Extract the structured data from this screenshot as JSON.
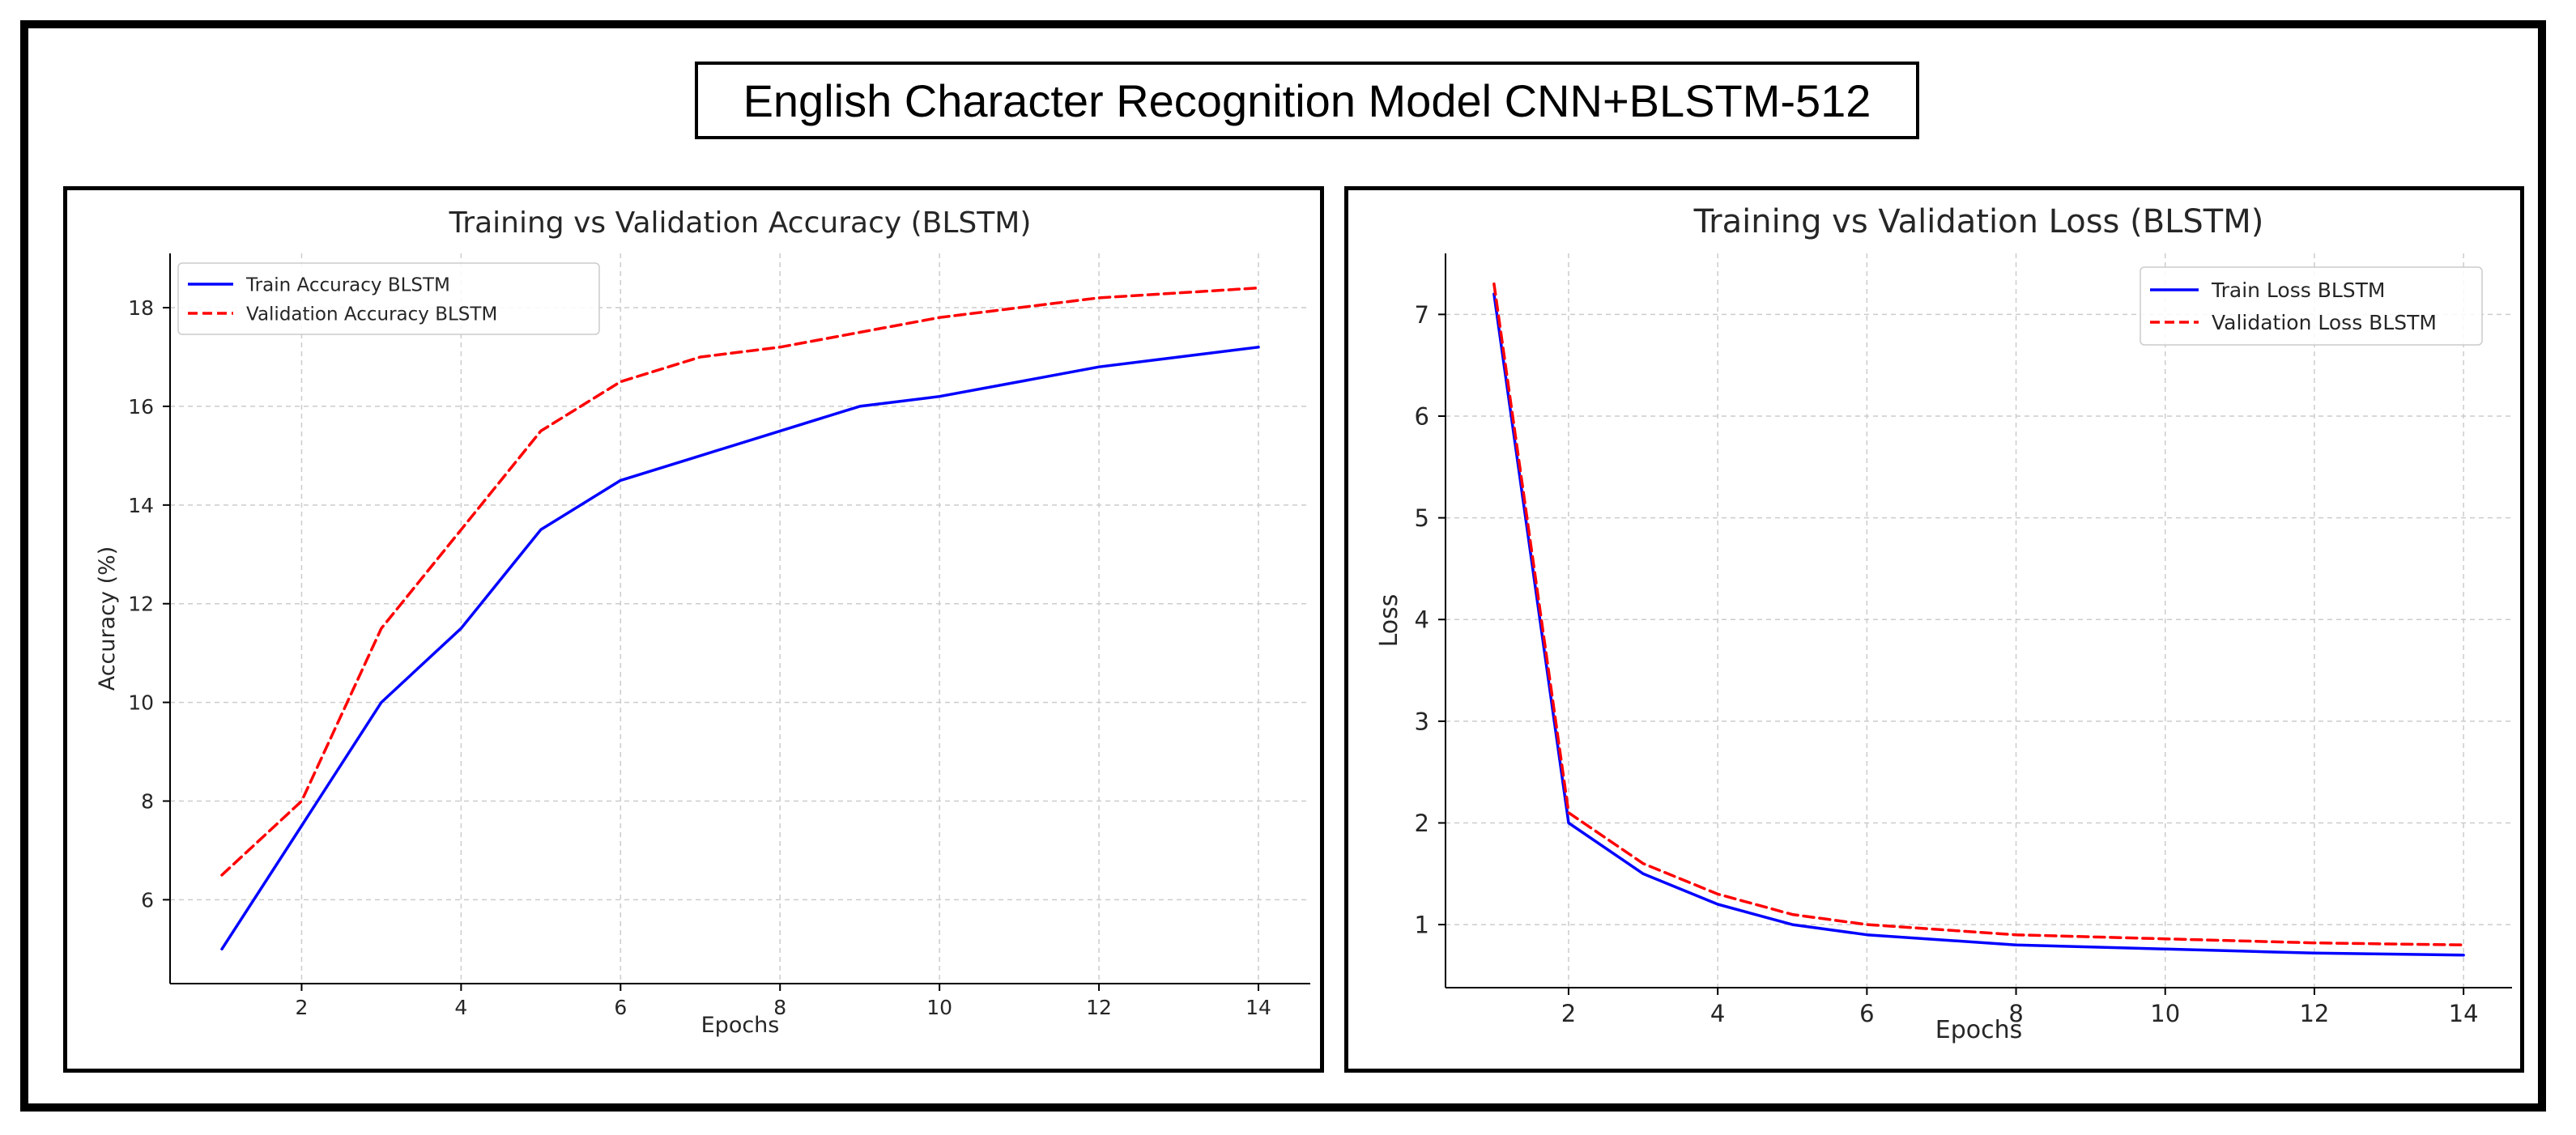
{
  "figure_title": "English Character Recognition Model CNN+BLSTM-512",
  "colors": {
    "train": "#0000ff",
    "validation": "#ff0000",
    "grid": "#cccccc"
  },
  "chart_data": [
    {
      "type": "line",
      "title": "Training vs Validation Accuracy (BLSTM)",
      "xlabel": "Epochs",
      "ylabel": "Accuracy (%)",
      "xlim": [
        0.35,
        14.65
      ],
      "ylim": [
        4.3,
        19.1
      ],
      "xticks": [
        2,
        4,
        6,
        8,
        10,
        12,
        14
      ],
      "yticks": [
        6,
        8,
        10,
        12,
        14,
        16,
        18
      ],
      "grid": true,
      "legend_position": "top-left",
      "x": [
        1,
        2,
        3,
        4,
        5,
        6,
        7,
        8,
        9,
        10,
        11,
        12,
        13,
        14
      ],
      "series": [
        {
          "name": "Train Accuracy BLSTM",
          "style": "solid",
          "color": "#0000ff",
          "values": [
            5.0,
            7.5,
            10.0,
            11.5,
            13.5,
            14.5,
            15.0,
            15.5,
            16.0,
            16.2,
            16.5,
            16.8,
            17.0,
            17.2
          ]
        },
        {
          "name": "Validation Accuracy BLSTM",
          "style": "dashed",
          "color": "#ff0000",
          "values": [
            6.5,
            8.0,
            11.5,
            13.5,
            15.5,
            16.5,
            17.0,
            17.2,
            17.5,
            17.8,
            18.0,
            18.2,
            18.3,
            18.4
          ]
        }
      ]
    },
    {
      "type": "line",
      "title": "Training vs Validation Loss (BLSTM)",
      "xlabel": "Epochs",
      "ylabel": "Loss",
      "xlim": [
        0.35,
        14.65
      ],
      "ylim": [
        0.38,
        7.6
      ],
      "xticks": [
        2,
        4,
        6,
        8,
        10,
        12,
        14
      ],
      "yticks": [
        1,
        2,
        3,
        4,
        5,
        6,
        7
      ],
      "grid": true,
      "legend_position": "top-right",
      "x": [
        1,
        2,
        3,
        4,
        5,
        6,
        7,
        8,
        9,
        10,
        11,
        12,
        13,
        14
      ],
      "series": [
        {
          "name": "Train Loss BLSTM",
          "style": "solid",
          "color": "#0000ff",
          "values": [
            7.2,
            2.0,
            1.5,
            1.2,
            1.0,
            0.9,
            0.85,
            0.8,
            0.78,
            0.76,
            0.74,
            0.72,
            0.71,
            0.7
          ]
        },
        {
          "name": "Validation Loss BLSTM",
          "style": "dashed",
          "color": "#ff0000",
          "values": [
            7.3,
            2.1,
            1.6,
            1.3,
            1.1,
            1.0,
            0.95,
            0.9,
            0.88,
            0.86,
            0.84,
            0.82,
            0.81,
            0.8
          ]
        }
      ]
    }
  ]
}
